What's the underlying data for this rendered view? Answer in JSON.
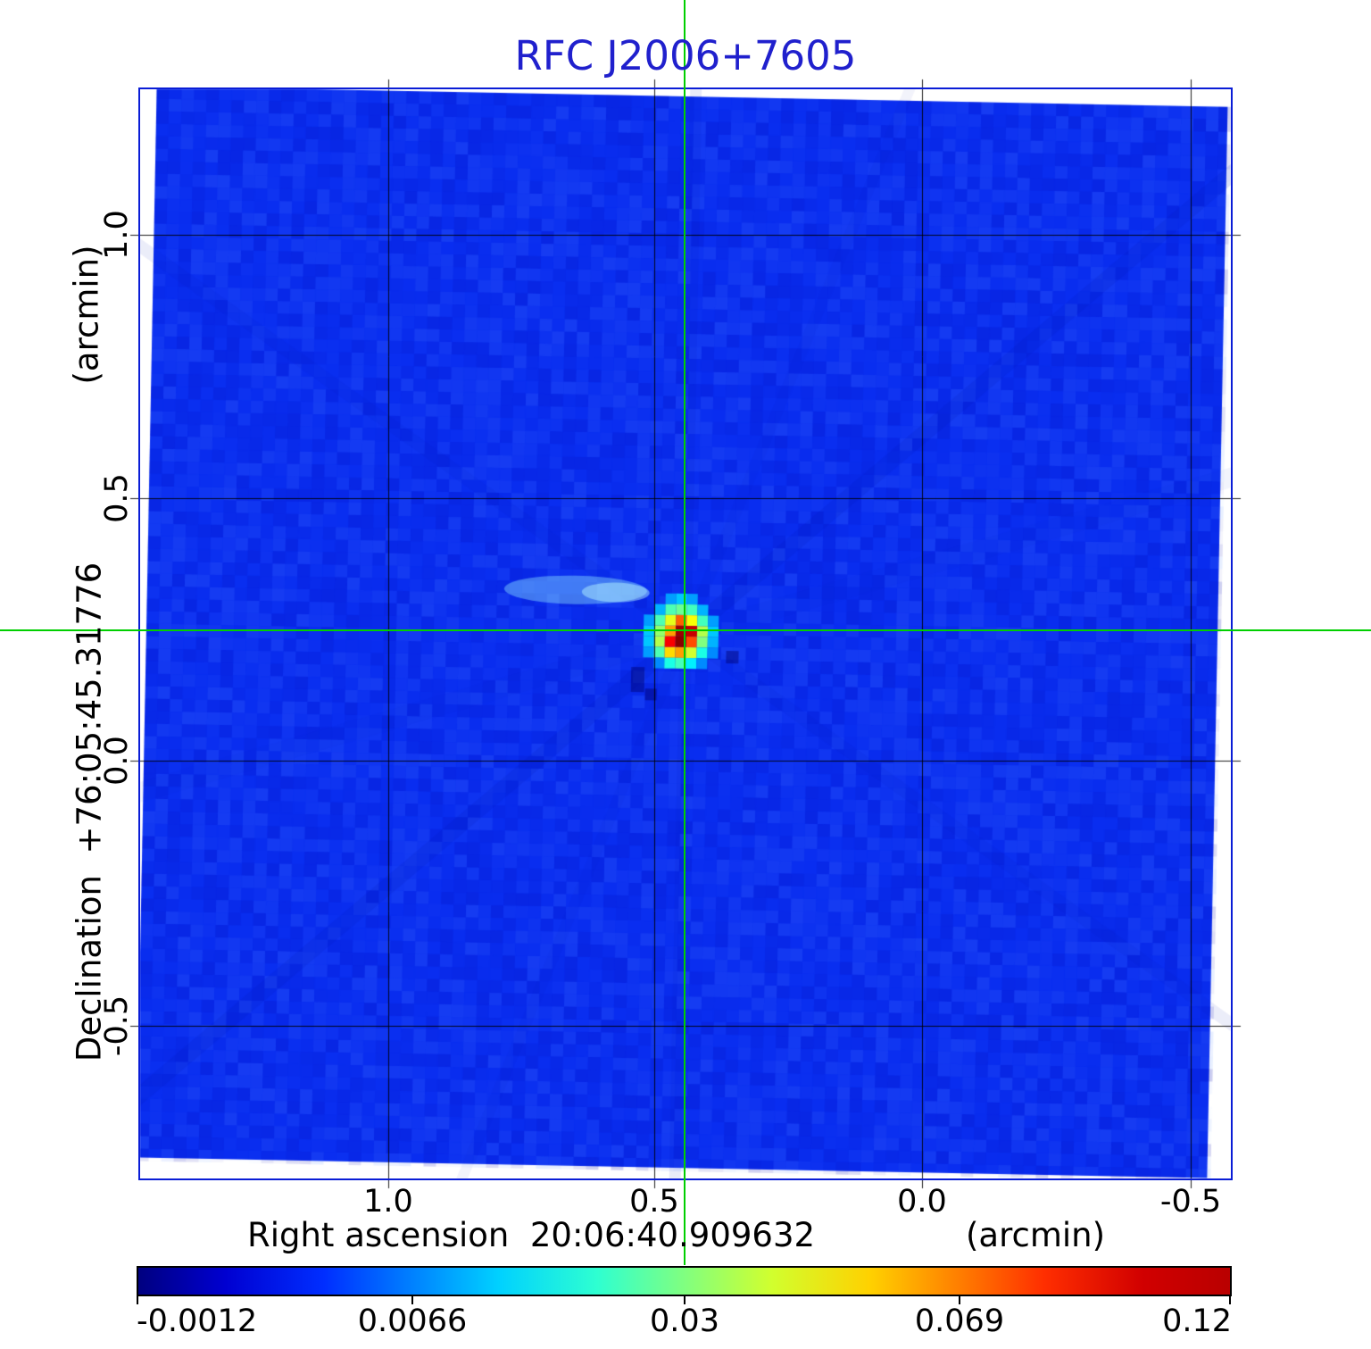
{
  "title": "RFC J2006+7605",
  "axes": {
    "y_label": "Declination  +76:05:45.31776",
    "y_unit": "(arcmin)",
    "x_label": "Right ascension  20:06:40.909632",
    "x_unit": "(arcmin)",
    "x_ticks": [
      "1.0",
      "0.5",
      "0.0",
      "-0.5"
    ],
    "y_ticks": [
      "1.0",
      "0.5",
      "0.0",
      "-0.5"
    ]
  },
  "colorbar": {
    "colormap": "jet",
    "tick_labels": [
      "-0.0012",
      "0.0066",
      "0.03",
      "0.069",
      "0.12"
    ]
  },
  "colors": {
    "title": "#2020cd",
    "frame": "#0a1dd6",
    "crosshair": "#00cf00",
    "map_background": "#0a2ef0"
  },
  "chart_data": {
    "type": "heatmap",
    "title": "RFC J2006+7605",
    "xlabel": "Right ascension 20:06:40.909632 (arcmin)",
    "ylabel": "Declination +76:05:45.31776 (arcmin)",
    "x_ticks": [
      1.0,
      0.5,
      0.0,
      -0.5
    ],
    "y_ticks": [
      1.0,
      0.5,
      0.0,
      -0.5
    ],
    "x_range": [
      1.45,
      -0.57
    ],
    "y_range": [
      -0.79,
      1.27
    ],
    "grid": true,
    "legend_position": "none",
    "colormap": "jet",
    "colorbar_ticks": [
      -0.0012,
      0.0066,
      0.03,
      0.069,
      0.12
    ],
    "value_min": -0.0012,
    "value_max": 0.12,
    "source": {
      "ra_offset_arcmin": 0.44,
      "dec_offset_arcmin": 0.25,
      "peak_value": 0.12
    },
    "crosshair": {
      "x_arcmin": 0.44,
      "y_arcmin": 0.25
    },
    "source_matrix": [
      [
        0.08,
        0.1,
        0.28,
        0.32,
        0.28,
        0.1,
        0.08
      ],
      [
        0.1,
        0.3,
        0.45,
        0.48,
        0.44,
        0.3,
        0.1
      ],
      [
        0.28,
        0.45,
        0.6,
        0.78,
        0.62,
        0.44,
        0.28
      ],
      [
        0.32,
        0.52,
        0.72,
        0.97,
        0.93,
        0.55,
        0.32
      ],
      [
        0.32,
        0.55,
        0.88,
        0.99,
        0.8,
        0.5,
        0.3
      ],
      [
        0.28,
        0.45,
        0.66,
        0.72,
        0.58,
        0.4,
        0.26
      ],
      [
        0.08,
        0.26,
        0.4,
        0.44,
        0.36,
        0.26,
        0.08
      ]
    ]
  }
}
